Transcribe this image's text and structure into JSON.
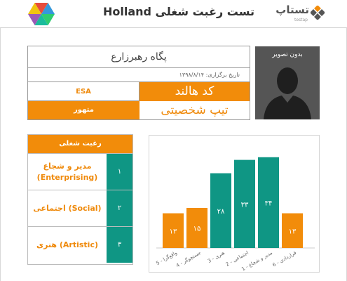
{
  "header": {
    "title": "تست رغبت شغلی Holland",
    "brand_name": "تستاپ",
    "brand_sub": "testap",
    "logo_icon": "hexagon-logo-icon"
  },
  "profile": {
    "photo_label": "بدون تصویر",
    "name": "پگاه رهبرزارع",
    "date": "تاریخ برگزاری: ۱۳۹۸/۸/۱۴",
    "code_label": "کد هالند",
    "code_value": "ESA",
    "type_label": "تیپ شخصیتی",
    "type_value": "متهور"
  },
  "interests": {
    "header": "رغبت شغلی",
    "items": [
      {
        "rank": "۱",
        "line1": "مدیر و شجاع",
        "line2": "(Enterprising)"
      },
      {
        "rank": "۲",
        "line1": "اجتماعی (Social)",
        "line2": ""
      },
      {
        "rank": "۳",
        "line1": "هنری (Artistic)",
        "line2": ""
      }
    ]
  },
  "colors": {
    "orange": "#f28c0a",
    "teal": "#0f9684",
    "dark": "#555555"
  },
  "chart_data": {
    "type": "bar",
    "categories": [
      "واقع‌گرا - 5",
      "جستجوگر - 4",
      "هنری - 3",
      "اجتماعی - 2",
      "مدیر و شجاع - 1",
      "قراردادی - 6"
    ],
    "values": [
      13,
      15,
      28,
      33,
      34,
      13
    ],
    "value_labels": [
      "۱۳",
      "۱۵",
      "۲۸",
      "۳۳",
      "۳۴",
      "۱۳"
    ],
    "colors": [
      "#f28c0a",
      "#f28c0a",
      "#0f9684",
      "#0f9684",
      "#0f9684",
      "#f28c0a"
    ],
    "ylim": [
      0,
      40
    ],
    "grid": false
  }
}
